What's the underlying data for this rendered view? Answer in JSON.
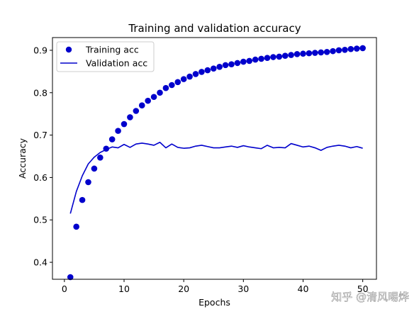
{
  "chart_data": {
    "type": "line",
    "title": "Training and validation accuracy",
    "xlabel": "Epochs",
    "ylabel": "Accuracy",
    "xlim": [
      -2,
      52.3
    ],
    "ylim": [
      0.36,
      0.93
    ],
    "xticks": [
      0,
      10,
      20,
      30,
      40,
      50
    ],
    "yticks": [
      0.4,
      0.5,
      0.6,
      0.7,
      0.8,
      0.9
    ],
    "grid": false,
    "legend_position": "top-left",
    "x": [
      1,
      2,
      3,
      4,
      5,
      6,
      7,
      8,
      9,
      10,
      11,
      12,
      13,
      14,
      15,
      16,
      17,
      18,
      19,
      20,
      21,
      22,
      23,
      24,
      25,
      26,
      27,
      28,
      29,
      30,
      31,
      32,
      33,
      34,
      35,
      36,
      37,
      38,
      39,
      40,
      41,
      42,
      43,
      44,
      45,
      46,
      47,
      48,
      49,
      50
    ],
    "series": [
      {
        "name": "Training acc",
        "style": "dots",
        "color": "#0000cc",
        "values": [
          0.365,
          0.484,
          0.547,
          0.589,
          0.621,
          0.647,
          0.668,
          0.69,
          0.71,
          0.726,
          0.742,
          0.757,
          0.77,
          0.781,
          0.79,
          0.8,
          0.811,
          0.818,
          0.825,
          0.832,
          0.838,
          0.844,
          0.849,
          0.853,
          0.857,
          0.861,
          0.865,
          0.867,
          0.87,
          0.873,
          0.875,
          0.878,
          0.88,
          0.882,
          0.884,
          0.885,
          0.887,
          0.889,
          0.891,
          0.892,
          0.893,
          0.894,
          0.895,
          0.896,
          0.898,
          0.9,
          0.901,
          0.903,
          0.904,
          0.905
        ]
      },
      {
        "name": "Validation acc",
        "style": "line",
        "color": "#0000cc",
        "values": [
          0.515,
          0.567,
          0.604,
          0.632,
          0.648,
          0.659,
          0.666,
          0.672,
          0.67,
          0.678,
          0.671,
          0.679,
          0.681,
          0.679,
          0.676,
          0.683,
          0.67,
          0.679,
          0.671,
          0.669,
          0.67,
          0.674,
          0.676,
          0.673,
          0.67,
          0.67,
          0.672,
          0.674,
          0.671,
          0.675,
          0.672,
          0.67,
          0.668,
          0.676,
          0.67,
          0.671,
          0.67,
          0.68,
          0.676,
          0.672,
          0.674,
          0.67,
          0.664,
          0.671,
          0.674,
          0.676,
          0.674,
          0.67,
          0.673,
          0.669
        ]
      }
    ]
  },
  "watermark": "知乎 @清风晹烨"
}
